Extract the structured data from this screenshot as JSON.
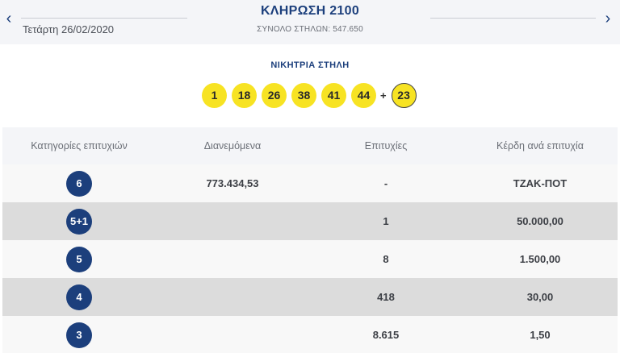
{
  "header": {
    "title": "ΚΛΗΡΩΣΗ 2100",
    "total_columns": "ΣΥΝΟΛΟ ΣΤΗΛΩΝ: 547.650",
    "date": "Τετάρτη 26/02/2020",
    "prev_icon": "chevron-left-icon",
    "next_icon": "chevron-right-icon"
  },
  "winning": {
    "label": "ΝΙΚΗΤΡΙΑ ΣΤΗΛΗ",
    "numbers": [
      "1",
      "18",
      "26",
      "38",
      "41",
      "44"
    ],
    "plus": "+",
    "joker": "23"
  },
  "table": {
    "headers": [
      "Κατηγορίες επιτυχιών",
      "Διανεμόμενα",
      "Επιτυχίες",
      "Κέρδη ανά επιτυχία"
    ],
    "rows": [
      {
        "category": "6",
        "distributed": "773.434,53",
        "winners": "-",
        "prize": "ΤΖΑΚ-ΠΟΤ"
      },
      {
        "category": "5+1",
        "distributed": "",
        "winners": "1",
        "prize": "50.000,00"
      },
      {
        "category": "5",
        "distributed": "",
        "winners": "8",
        "prize": "1.500,00"
      },
      {
        "category": "4",
        "distributed": "",
        "winners": "418",
        "prize": "30,00"
      },
      {
        "category": "3",
        "distributed": "",
        "winners": "8.615",
        "prize": "1,50"
      }
    ]
  },
  "colors": {
    "accent": "#1c3f7c",
    "ball": "#f7e323",
    "row_alt": "#dcdcdc"
  }
}
